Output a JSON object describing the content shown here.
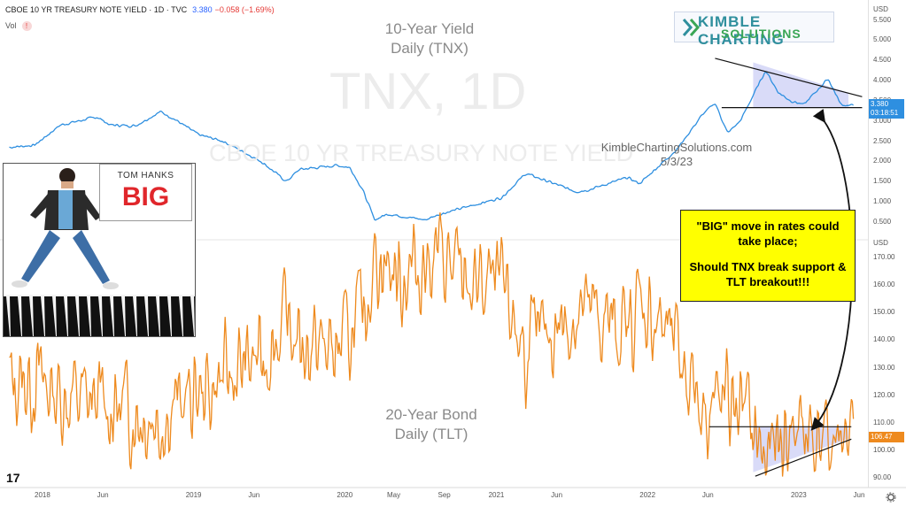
{
  "header": {
    "symbol_line": "CBOE 10 YR TREASURY NOTE YIELD · 1D · TVC",
    "price": "3.380",
    "change": "−0.058 (−1.69%)",
    "vol_label": "Vol",
    "vol_badge": "!"
  },
  "top_panel": {
    "title_line1": "10-Year Yield",
    "title_line2": "Daily (TNX)"
  },
  "bottom_panel": {
    "title_line1": "20-Year Bond",
    "title_line2": "Daily (TLT)"
  },
  "watermark": {
    "big": "TNX, 1D",
    "small": "CBOE 10 YR TREASURY NOTE YIELD"
  },
  "site": {
    "name": "KimbleChartingSolutions.com",
    "date": "5/3/23"
  },
  "logo": {
    "line1": "KIMBLE CHARTING",
    "line2": "SOLUTIONS"
  },
  "note": {
    "line1": "\"BIG\" move in rates could take place;",
    "line2": "Should TNX break support & TLT breakout!!!"
  },
  "poster": {
    "name": "TOM HANKS",
    "title": "BIG"
  },
  "tnx_labels": {
    "price": "3.380",
    "countdown": "03:18:51"
  },
  "tlt_labels": {
    "price": "106.47"
  },
  "colors": {
    "tnx": "#2e8fe0",
    "tlt": "#ee8a1e",
    "triangle_fill": "#c9ccf5",
    "note_bg": "#ffff00"
  },
  "chart_data": [
    {
      "type": "line",
      "title": "10-Year Yield Daily (TNX)",
      "ylabel": "USD",
      "yticks": [
        "5.500",
        "5.000",
        "4.500",
        "4.000",
        "3.500",
        "3.000",
        "2.500",
        "2.000",
        "1.500",
        "1.000",
        "0.500"
      ],
      "ylim": [
        0.3,
        5.6
      ],
      "series": [
        {
          "name": "TNX",
          "x": [
            "2017-10",
            "2017-12",
            "2018-02",
            "2018-05",
            "2018-06",
            "2018-08",
            "2018-10",
            "2018-11",
            "2019-01",
            "2019-03",
            "2019-06",
            "2019-08",
            "2019-09",
            "2019-12",
            "2020-01",
            "2020-02",
            "2020-03",
            "2020-04",
            "2020-07",
            "2020-08",
            "2020-10",
            "2021-01",
            "2021-03",
            "2021-07",
            "2021-08",
            "2021-11",
            "2021-12",
            "2022-03",
            "2022-05",
            "2022-06",
            "2022-07",
            "2022-08",
            "2022-10",
            "2022-11",
            "2022-12",
            "2023-01",
            "2023-03",
            "2023-04",
            "2023-05"
          ],
          "values": [
            2.35,
            2.4,
            2.9,
            3.1,
            2.9,
            2.88,
            3.23,
            3.06,
            2.66,
            2.5,
            2.0,
            1.5,
            1.8,
            1.9,
            1.85,
            1.3,
            0.55,
            0.7,
            0.55,
            0.68,
            0.85,
            1.1,
            1.7,
            1.25,
            1.3,
            1.6,
            1.45,
            2.3,
            3.15,
            3.45,
            2.7,
            3.0,
            4.25,
            3.7,
            3.5,
            3.4,
            4.05,
            3.4,
            3.38
          ]
        }
      ]
    },
    {
      "type": "line",
      "title": "20-Year Bond Daily (TLT)",
      "ylabel": "USD",
      "yticks": [
        "170.00",
        "160.00",
        "150.00",
        "140.00",
        "130.00",
        "120.00",
        "110.00",
        "100.00",
        "90.00"
      ],
      "ylim": [
        88,
        173
      ],
      "series": [
        {
          "name": "TLT",
          "x": [
            "2017-10",
            "2017-12",
            "2018-02",
            "2018-05",
            "2018-10",
            "2018-12",
            "2019-03",
            "2019-06",
            "2019-08",
            "2019-09",
            "2019-12",
            "2020-02",
            "2020-03",
            "2020-05",
            "2020-08",
            "2020-10",
            "2021-01",
            "2021-03",
            "2021-07",
            "2021-08",
            "2021-11",
            "2021-12",
            "2022-02",
            "2022-05",
            "2022-06",
            "2022-08",
            "2022-10",
            "2022-11",
            "2022-12",
            "2023-01",
            "2023-03",
            "2023-04",
            "2023-05"
          ],
          "values": [
            124,
            126,
            120,
            117,
            112,
            118,
            125,
            134,
            146,
            139,
            136,
            148,
            171,
            163,
            171,
            161,
            158,
            136,
            150,
            149,
            143,
            154,
            143,
            119,
            115,
            118,
            96,
            101,
            108,
            108,
            102,
            106,
            106.47
          ]
        }
      ]
    }
  ],
  "x_axis": {
    "labels": [
      "2018",
      "Jun",
      "2019",
      "Jun",
      "2020",
      "May",
      "Sep",
      "2021",
      "Jun",
      "2022",
      "Jun",
      "2023",
      "Jun"
    ]
  },
  "tradingview_logo": "17"
}
